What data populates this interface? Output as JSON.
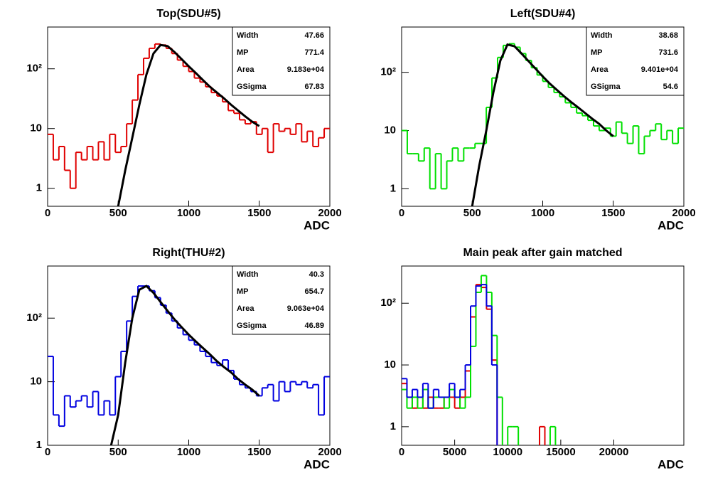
{
  "chart_data": [
    {
      "type": "histogram",
      "title": "Top(SDU#5)",
      "xlabel": "ADC",
      "color": "#e00000",
      "log_y": true,
      "xlim": [
        0,
        2000
      ],
      "ylim": [
        0.5,
        500
      ],
      "xticks": [
        0,
        500,
        1000,
        1500,
        2000
      ],
      "yticks": [
        1,
        10,
        {
          "value": 100,
          "label": "10²"
        }
      ],
      "bins": [
        0,
        40,
        80,
        120,
        160,
        200,
        240,
        280,
        320,
        360,
        400,
        440,
        480,
        520,
        560,
        600,
        640,
        680,
        720,
        760,
        800,
        840,
        880,
        920,
        960,
        1000,
        1040,
        1080,
        1120,
        1160,
        1200,
        1240,
        1280,
        1320,
        1360,
        1400,
        1440,
        1480,
        1520,
        1560,
        1600,
        1640,
        1680,
        1720,
        1760,
        1800,
        1840,
        1880,
        1920,
        1960,
        2000
      ],
      "values": [
        8,
        3,
        5,
        2,
        1,
        4,
        3,
        5,
        3,
        6,
        3,
        8,
        4,
        5,
        12,
        30,
        80,
        150,
        220,
        260,
        250,
        220,
        180,
        140,
        110,
        90,
        70,
        60,
        50,
        40,
        35,
        28,
        20,
        18,
        14,
        12,
        13,
        8,
        10,
        4,
        12,
        9,
        10,
        8,
        12,
        6,
        9,
        5,
        7,
        10
      ],
      "fit": {
        "color": "#000000",
        "x": [
          500,
          550,
          600,
          650,
          700,
          750,
          800,
          850,
          900,
          950,
          1000,
          1050,
          1100,
          1150,
          1200,
          1250,
          1300,
          1350,
          1400,
          1450,
          1500
        ],
        "values": [
          0.5,
          2,
          7,
          25,
          80,
          180,
          250,
          240,
          190,
          145,
          110,
          85,
          65,
          50,
          40,
          32,
          25,
          20,
          16,
          13,
          11
        ]
      },
      "stats": [
        {
          "label": "Width",
          "value": "47.66"
        },
        {
          "label": "MP",
          "value": "771.4"
        },
        {
          "label": "Area",
          "value": "9.183e+04"
        },
        {
          "label": "GSigma",
          "value": "67.83"
        }
      ]
    },
    {
      "type": "histogram",
      "title": "Left(SDU#4)",
      "xlabel": "ADC",
      "color": "#00e000",
      "log_y": true,
      "xlim": [
        0,
        2000
      ],
      "ylim": [
        0.5,
        600
      ],
      "xticks": [
        0,
        500,
        1000,
        1500,
        2000
      ],
      "yticks": [
        1,
        10,
        {
          "value": 100,
          "label": "10²"
        }
      ],
      "bins": [
        0,
        40,
        80,
        120,
        160,
        200,
        240,
        280,
        320,
        360,
        400,
        440,
        480,
        520,
        560,
        600,
        640,
        680,
        720,
        760,
        800,
        840,
        880,
        920,
        960,
        1000,
        1040,
        1080,
        1120,
        1160,
        1200,
        1240,
        1280,
        1320,
        1360,
        1400,
        1440,
        1480,
        1520,
        1560,
        1600,
        1640,
        1680,
        1720,
        1760,
        1800,
        1840,
        1880,
        1920,
        1960,
        2000
      ],
      "values": [
        10,
        4,
        4,
        3,
        5,
        1,
        4,
        1,
        3,
        5,
        3,
        5,
        5,
        6,
        6,
        25,
        80,
        180,
        290,
        310,
        270,
        210,
        160,
        120,
        90,
        70,
        55,
        45,
        38,
        30,
        25,
        20,
        18,
        15,
        12,
        10,
        11,
        8,
        14,
        9,
        6,
        12,
        4,
        8,
        10,
        13,
        7,
        10,
        6,
        11
      ],
      "fit": {
        "color": "#000000",
        "x": [
          500,
          550,
          600,
          650,
          700,
          750,
          800,
          850,
          900,
          950,
          1000,
          1050,
          1100,
          1150,
          1200,
          1250,
          1300,
          1350,
          1400,
          1450,
          1500
        ],
        "values": [
          0.5,
          2.5,
          10,
          45,
          160,
          300,
          280,
          210,
          155,
          115,
          85,
          64,
          50,
          39,
          31,
          25,
          20,
          16,
          13,
          10,
          8
        ]
      },
      "stats": [
        {
          "label": "Width",
          "value": "38.68"
        },
        {
          "label": "MP",
          "value": "731.6"
        },
        {
          "label": "Area",
          "value": "9.401e+04"
        },
        {
          "label": "GSigma",
          "value": "54.6"
        }
      ]
    },
    {
      "type": "histogram",
      "title": "Right(THU#2)",
      "xlabel": "ADC",
      "color": "#0000e0",
      "log_y": true,
      "xlim": [
        0,
        2000
      ],
      "ylim": [
        1,
        660
      ],
      "xticks": [
        0,
        500,
        1000,
        1500,
        2000
      ],
      "yticks": [
        1,
        10,
        {
          "value": 100,
          "label": "10²"
        }
      ],
      "bins": [
        0,
        40,
        80,
        120,
        160,
        200,
        240,
        280,
        320,
        360,
        400,
        440,
        480,
        520,
        560,
        600,
        640,
        680,
        720,
        760,
        800,
        840,
        880,
        920,
        960,
        1000,
        1040,
        1080,
        1120,
        1160,
        1200,
        1240,
        1280,
        1320,
        1360,
        1400,
        1440,
        1480,
        1520,
        1560,
        1600,
        1640,
        1680,
        1720,
        1760,
        1800,
        1840,
        1880,
        1920,
        1960,
        2000
      ],
      "values": [
        25,
        3,
        2,
        6,
        4,
        5,
        6,
        4,
        7,
        3,
        5,
        3,
        12,
        30,
        90,
        220,
        320,
        320,
        270,
        210,
        160,
        120,
        90,
        70,
        55,
        45,
        38,
        30,
        25,
        20,
        18,
        22,
        15,
        11,
        9,
        8,
        7,
        6,
        8,
        9,
        5,
        10,
        7,
        10,
        9,
        10,
        8,
        9,
        3,
        12
      ],
      "fit": {
        "color": "#000000",
        "x": [
          450,
          500,
          550,
          600,
          650,
          700,
          750,
          800,
          850,
          900,
          950,
          1000,
          1050,
          1100,
          1150,
          1200,
          1250,
          1300,
          1350,
          1400,
          1450,
          1500
        ],
        "values": [
          1,
          3,
          20,
          100,
          280,
          320,
          250,
          180,
          130,
          95,
          72,
          55,
          43,
          34,
          27,
          21,
          17,
          14,
          11,
          9,
          7.5,
          6
        ]
      },
      "stats": [
        {
          "label": "Width",
          "value": "40.3"
        },
        {
          "label": "MP",
          "value": "654.7"
        },
        {
          "label": "Area",
          "value": "9.063e+04"
        },
        {
          "label": "GSigma",
          "value": "46.89"
        }
      ]
    },
    {
      "type": "histogram",
      "title": "Main peak after gain matched",
      "xlabel": "ADC",
      "log_y": true,
      "xlim": [
        0,
        26600
      ],
      "ylim": [
        0.5,
        400
      ],
      "xticks": [
        0,
        5000,
        10000,
        15000,
        20000
      ],
      "yticks": [
        1,
        10,
        {
          "value": 100,
          "label": "10²"
        }
      ],
      "bins": [
        0,
        500,
        1000,
        1500,
        2000,
        2500,
        3000,
        3500,
        4000,
        4500,
        5000,
        5500,
        6000,
        6500,
        7000,
        7500,
        8000,
        8500,
        9000,
        9500,
        10000,
        10500,
        11000,
        11500,
        12000,
        12500,
        13000,
        13500,
        14000,
        14500,
        15000,
        15500,
        16000,
        16500,
        17000,
        17500,
        18000,
        18500,
        19000,
        19500,
        20000,
        20500,
        21000,
        21500,
        22000,
        22500,
        23000,
        23500,
        24000,
        24500,
        25000,
        25500,
        26000,
        26500
      ],
      "series": [
        {
          "color": "#e00000",
          "values": [
            5,
            3,
            2,
            3,
            2,
            3,
            2,
            2,
            3,
            3,
            2,
            3,
            8,
            60,
            200,
            180,
            80,
            12,
            0,
            0,
            0,
            0,
            0,
            0,
            0,
            0,
            1,
            0,
            0,
            0,
            0,
            0,
            0,
            0,
            0,
            0,
            0,
            0,
            0,
            0,
            0,
            0,
            0,
            0,
            0,
            0,
            0,
            0,
            0,
            0,
            0,
            0,
            0
          ]
        },
        {
          "color": "#00e000",
          "values": [
            4,
            2,
            3,
            2,
            4,
            2,
            3,
            3,
            2,
            4,
            3,
            2,
            3,
            20,
            150,
            280,
            150,
            30,
            3,
            0,
            1,
            1,
            0,
            0,
            0,
            0,
            0,
            0,
            1,
            0,
            0,
            0,
            0,
            0,
            0,
            0,
            0,
            0,
            0,
            0,
            0,
            0,
            0,
            0,
            0,
            0,
            0,
            0,
            0,
            0,
            0,
            0,
            0
          ]
        },
        {
          "color": "#0000e0",
          "values": [
            6,
            3,
            4,
            3,
            5,
            2,
            4,
            3,
            3,
            5,
            3,
            4,
            10,
            90,
            190,
            200,
            90,
            10,
            0,
            0,
            0,
            0,
            0,
            0,
            0,
            0,
            0,
            0,
            0,
            0,
            0,
            0,
            0,
            0,
            0,
            0,
            0,
            0,
            0,
            0,
            0,
            0,
            0,
            0,
            0,
            0,
            0,
            0,
            0,
            0,
            0,
            0,
            0
          ]
        }
      ]
    }
  ]
}
